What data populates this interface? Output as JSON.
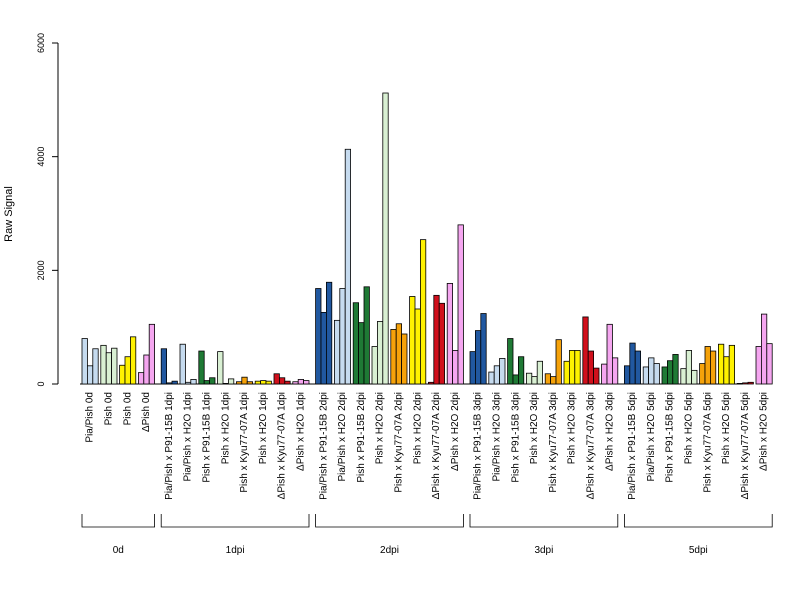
{
  "chart_data": {
    "type": "bar",
    "title": "",
    "xlabel": "",
    "ylabel": "Raw Signal",
    "ylim": [
      0,
      6000
    ],
    "yticks": [
      0,
      2000,
      4000,
      6000
    ],
    "grid": false,
    "legend": "none",
    "colors": {
      "light_blue": "#c6dbef",
      "dark_blue": "#2158a0",
      "light_green": "#d9f0d3",
      "dark_green": "#1f7a35",
      "yellow": "#fff200",
      "orange": "#f5a20a",
      "red": "#d0101c",
      "pink": "#f5a6f0",
      "bar_outline": "#000000"
    },
    "groups": [
      {
        "label": "0d",
        "categories": [
          {
            "label": "Pia/Pish 0d",
            "color": "light_blue",
            "values": [
              800,
              320,
              620
            ]
          },
          {
            "label": "Pish 0d",
            "color": "light_green",
            "values": [
              680,
              550,
              630
            ]
          },
          {
            "label": "Pish 0d",
            "color": "yellow",
            "values": [
              330,
              480,
              830
            ]
          },
          {
            "label": "ΔPish 0d",
            "color": "pink",
            "values": [
              200,
              510,
              1050
            ]
          }
        ]
      },
      {
        "label": "1dpi",
        "categories": [
          {
            "label": "Pia/Pish x P91-15B 1dpi",
            "color": "dark_blue",
            "values": [
              620,
              20,
              50
            ]
          },
          {
            "label": "Pia/Pish x H2O 1dpi",
            "color": "light_blue",
            "values": [
              700,
              30,
              80
            ]
          },
          {
            "label": "Pish x P91-15B 1dpi",
            "color": "dark_green",
            "values": [
              580,
              60,
              110
            ]
          },
          {
            "label": "Pish x H2O 1dpi",
            "color": "light_green",
            "values": [
              570,
              10,
              90
            ]
          },
          {
            "label": "Pish x Kyu77-07A 1dpi",
            "color": "orange",
            "values": [
              40,
              120,
              40
            ]
          },
          {
            "label": "Pish x H2O 1dpi",
            "color": "yellow",
            "values": [
              50,
              60,
              50
            ]
          },
          {
            "label": "ΔPish x Kyu77-07A 1dpi",
            "color": "red",
            "values": [
              180,
              110,
              50
            ]
          },
          {
            "label": "ΔPish x H2O 1dpi",
            "color": "pink",
            "values": [
              40,
              80,
              60
            ]
          }
        ]
      },
      {
        "label": "2dpi",
        "categories": [
          {
            "label": "Pia/Pish x P91-15B 2dpi",
            "color": "dark_blue",
            "values": [
              1680,
              1260,
              1790
            ]
          },
          {
            "label": "Pia/Pish x H2O 2dpi",
            "color": "light_blue",
            "values": [
              1120,
              1680,
              4130
            ]
          },
          {
            "label": "Pish x P91-15B 2dpi",
            "color": "dark_green",
            "values": [
              1430,
              1080,
              1710
            ]
          },
          {
            "label": "Pish x H2O 2dpi",
            "color": "light_green",
            "values": [
              660,
              1100,
              5120
            ]
          },
          {
            "label": "Pish x Kyu77-07A 2dpi",
            "color": "orange",
            "values": [
              960,
              1060,
              880
            ]
          },
          {
            "label": "Pish x H2O 2dpi",
            "color": "yellow",
            "values": [
              1540,
              1320,
              2540
            ]
          },
          {
            "label": "ΔPish x Kyu77-07A 2dpi",
            "color": "red",
            "values": [
              30,
              1560,
              1420
            ]
          },
          {
            "label": "ΔPish x H2O 2dpi",
            "color": "pink",
            "values": [
              1770,
              590,
              2800
            ]
          }
        ]
      },
      {
        "label": "3dpi",
        "categories": [
          {
            "label": "Pia/Pish x P91-15B 3dpi",
            "color": "dark_blue",
            "values": [
              570,
              940,
              1240
            ]
          },
          {
            "label": "Pia/Pish x H2O 3dpi",
            "color": "light_blue",
            "values": [
              210,
              320,
              450
            ]
          },
          {
            "label": "Pish x P91-15B 3dpi",
            "color": "dark_green",
            "values": [
              800,
              160,
              480
            ]
          },
          {
            "label": "Pish x H2O 3dpi",
            "color": "light_green",
            "values": [
              190,
              130,
              400
            ]
          },
          {
            "label": "Pish x Kyu77-07A 3dpi",
            "color": "orange",
            "values": [
              180,
              130,
              780
            ]
          },
          {
            "label": "Pish x H2O 3dpi",
            "color": "yellow",
            "values": [
              400,
              590,
              590
            ]
          },
          {
            "label": "ΔPish x Kyu77-07A 3dpi",
            "color": "red",
            "values": [
              1180,
              580,
              280
            ]
          },
          {
            "label": "ΔPish x H2O 3dpi",
            "color": "pink",
            "values": [
              350,
              1050,
              460
            ]
          }
        ]
      },
      {
        "label": "5dpi",
        "categories": [
          {
            "label": "Pia/Pish x P91-15B 5dpi",
            "color": "dark_blue",
            "values": [
              320,
              720,
              580
            ]
          },
          {
            "label": "Pia/Pish x H2O 5dpi",
            "color": "light_blue",
            "values": [
              300,
              460,
              360
            ]
          },
          {
            "label": "Pish x P91-15B 5dpi",
            "color": "dark_green",
            "values": [
              300,
              410,
              520
            ]
          },
          {
            "label": "Pish x H2O 5dpi",
            "color": "light_green",
            "values": [
              270,
              590,
              240
            ]
          },
          {
            "label": "Pish x Kyu77-07A 5dpi",
            "color": "orange",
            "values": [
              360,
              660,
              580
            ]
          },
          {
            "label": "Pish x H2O 5dpi",
            "color": "yellow",
            "values": [
              700,
              480,
              680
            ]
          },
          {
            "label": "ΔPish x Kyu77-07A 5dpi",
            "color": "red",
            "values": [
              10,
              20,
              30
            ]
          },
          {
            "label": "ΔPish x H2O 5dpi",
            "color": "pink",
            "values": [
              660,
              1230,
              710
            ]
          }
        ]
      }
    ]
  }
}
